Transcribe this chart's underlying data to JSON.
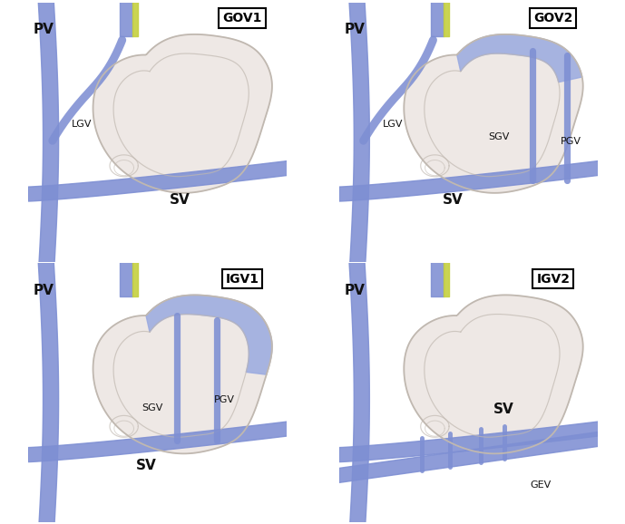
{
  "panels": [
    {
      "label": "GOV1",
      "row": 0,
      "col": 0,
      "has_lgv": true,
      "blue_fundus": false,
      "blue_body_igv": false,
      "has_sgv": false,
      "has_pgv": false,
      "has_gev": false,
      "sv_label": [
        0.55,
        0.22
      ],
      "lgv_label": [
        0.17,
        0.52
      ],
      "sgv_label": null,
      "pgv_label": null,
      "gev_label": null
    },
    {
      "label": "GOV2",
      "row": 0,
      "col": 1,
      "has_lgv": true,
      "blue_fundus": true,
      "blue_body_igv": false,
      "has_sgv": true,
      "has_pgv": true,
      "has_gev": false,
      "sv_label": [
        0.4,
        0.22
      ],
      "lgv_label": [
        0.17,
        0.52
      ],
      "sgv_label": [
        0.58,
        0.47
      ],
      "pgv_label": [
        0.86,
        0.45
      ],
      "gev_label": null
    },
    {
      "label": "IGV1",
      "row": 1,
      "col": 0,
      "has_lgv": false,
      "blue_fundus": true,
      "blue_body_igv": true,
      "has_sgv": true,
      "has_pgv": true,
      "has_gev": false,
      "sv_label": [
        0.42,
        0.2
      ],
      "lgv_label": null,
      "sgv_label": [
        0.44,
        0.43
      ],
      "pgv_label": [
        0.72,
        0.46
      ],
      "gev_label": null
    },
    {
      "label": "IGV2",
      "row": 1,
      "col": 1,
      "has_lgv": false,
      "blue_fundus": false,
      "blue_body_igv": false,
      "has_sgv": false,
      "has_pgv": false,
      "has_gev": true,
      "sv_label": [
        0.6,
        0.42
      ],
      "lgv_label": null,
      "sgv_label": null,
      "pgv_label": null,
      "gev_label": [
        0.74,
        0.13
      ]
    }
  ],
  "blue": "#7E8FD3",
  "blue_light": "#9AAAE0",
  "stomach_fill": "#EEE8E5",
  "stomach_fill_inner": "#E8E2DF",
  "outline_color": "#C0B8B0",
  "yellow_green": "#C5D040",
  "bg": "#FFFFFF",
  "lw_vessel": 6.5,
  "lw_stomach": 1.3,
  "text_color": "#111111",
  "label_fontsize": 8,
  "pv_label_fontsize": 11,
  "sv_label_fontsize": 11
}
